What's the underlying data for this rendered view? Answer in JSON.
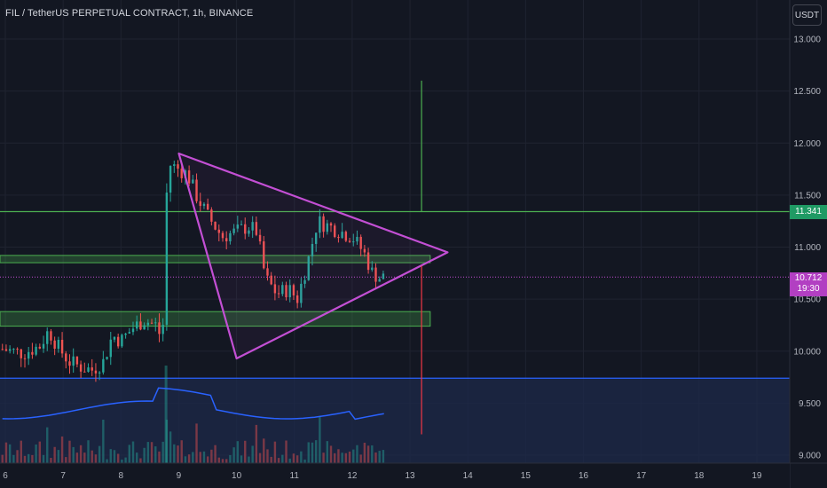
{
  "header": {
    "symbol_title": "FIL / TetherUS PERPETUAL CONTRACT, 1h, BINANCE",
    "currency_button": "USDT"
  },
  "price_tags": {
    "level_price": "11.341",
    "last_price": "10.712",
    "countdown": "19:30"
  },
  "colors": {
    "background": "#131722",
    "up_candle": "#26a69a",
    "down_candle": "#ef5350",
    "triangle": "#c34fd4",
    "zone_fill": "#4caf50",
    "blue_line": "#2962ff",
    "green_line": "#4caf50",
    "red_line": "#f23645"
  },
  "chart_data": {
    "type": "candlestick",
    "y_ticks": [
      13.0,
      12.5,
      12.0,
      11.5,
      11.0,
      10.5,
      10.0,
      9.5,
      9.0
    ],
    "y_tick_labels": [
      "13.000",
      "12.500",
      "12.000",
      "11.500",
      "11.000",
      "10.500",
      "10.000",
      "9.500",
      "9.000"
    ],
    "x_ticks": [
      6,
      7,
      8,
      9,
      10,
      11,
      12,
      13,
      14,
      15,
      16,
      17,
      18,
      19
    ],
    "x_tick_labels": [
      "6",
      "7",
      "8",
      "9",
      "10",
      "11",
      "12",
      "13",
      "14",
      "15",
      "16",
      "17",
      "18",
      "19"
    ],
    "ylim": [
      8.95,
      13.1
    ],
    "xlim": [
      5.9,
      19.5
    ],
    "last_price": 10.712,
    "horizontal_levels": [
      {
        "price": 11.341,
        "color": "green"
      },
      {
        "price": 9.74,
        "color": "blue"
      }
    ],
    "zones": [
      {
        "from": 10.85,
        "to": 10.92,
        "x_end": 13.35
      },
      {
        "from": 10.24,
        "to": 10.38,
        "x_end": 13.35
      }
    ],
    "triangle": [
      [
        9.0,
        11.9
      ],
      [
        13.65,
        10.95
      ],
      [
        10.0,
        9.93
      ]
    ],
    "projection": {
      "x": 13.2,
      "green_from": 12.6,
      "green_to": 11.341,
      "red_from": 10.82,
      "red_to": 9.2
    },
    "price_path": [
      [
        5.95,
        10.02
      ],
      [
        6.3,
        9.98
      ],
      [
        6.6,
        10.05
      ],
      [
        6.75,
        10.2
      ],
      [
        6.9,
        10.05
      ],
      [
        7.1,
        9.9
      ],
      [
        7.3,
        9.85
      ],
      [
        7.5,
        9.82
      ],
      [
        7.7,
        9.9
      ],
      [
        7.85,
        10.15
      ],
      [
        8.0,
        10.1
      ],
      [
        8.2,
        10.22
      ],
      [
        8.4,
        10.3
      ],
      [
        8.6,
        10.25
      ],
      [
        8.72,
        10.1
      ],
      [
        8.78,
        11.4
      ],
      [
        8.82,
        11.8
      ],
      [
        9.0,
        11.75
      ],
      [
        9.15,
        11.7
      ],
      [
        9.3,
        11.5
      ],
      [
        9.5,
        11.3
      ],
      [
        9.75,
        11.1
      ],
      [
        10.0,
        11.15
      ],
      [
        10.2,
        11.2
      ],
      [
        10.35,
        11.15
      ],
      [
        10.5,
        10.7
      ],
      [
        10.7,
        10.55
      ],
      [
        10.9,
        10.6
      ],
      [
        11.05,
        10.5
      ],
      [
        11.25,
        10.9
      ],
      [
        11.4,
        11.25
      ],
      [
        11.6,
        11.2
      ],
      [
        11.8,
        11.15
      ],
      [
        12.0,
        11.1
      ],
      [
        12.2,
        10.95
      ],
      [
        12.35,
        10.75
      ],
      [
        12.5,
        10.7
      ],
      [
        12.55,
        10.712
      ]
    ],
    "volume_max": 9.4
  }
}
